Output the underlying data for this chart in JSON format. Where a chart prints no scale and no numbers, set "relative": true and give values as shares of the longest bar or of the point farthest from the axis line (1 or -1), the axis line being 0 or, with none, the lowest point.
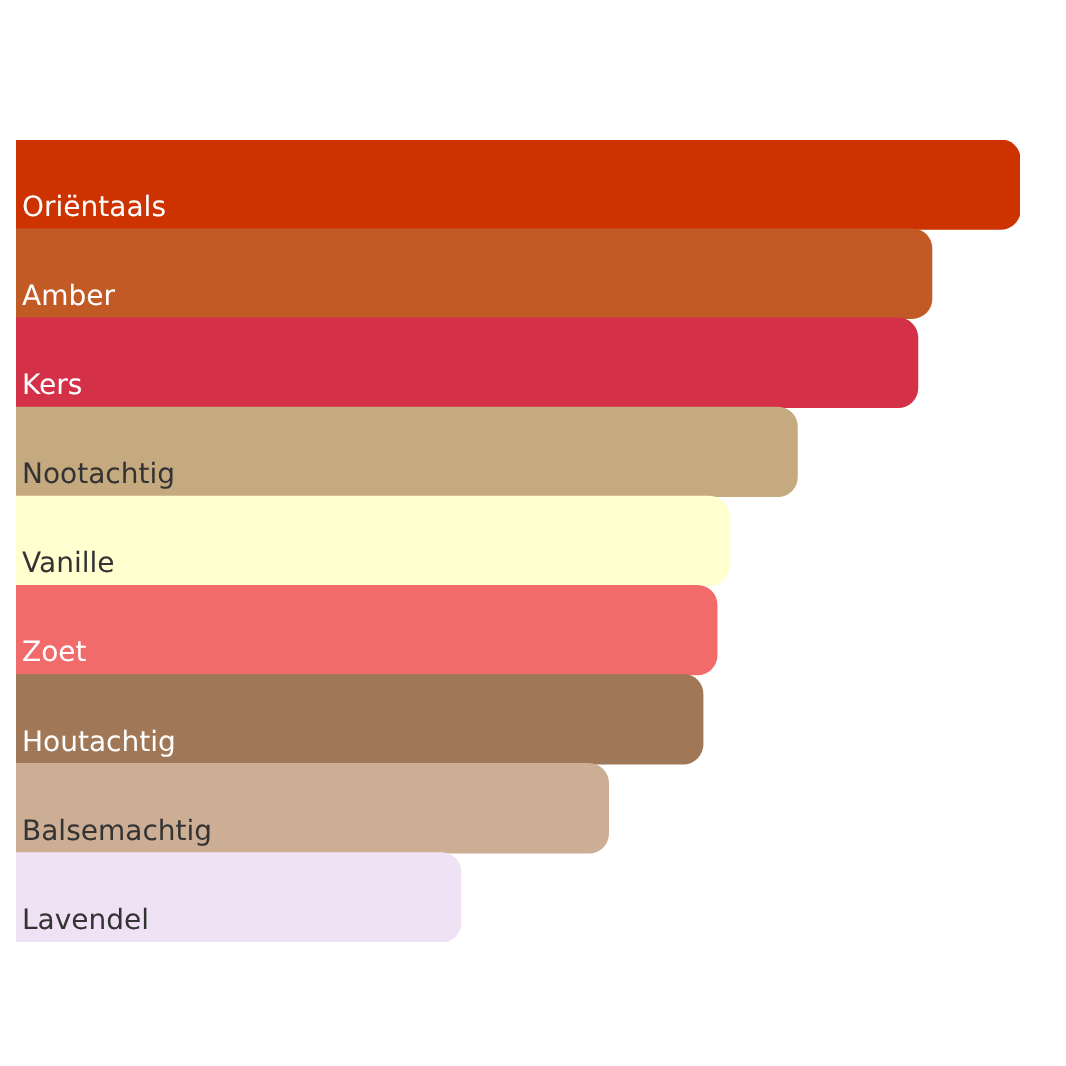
{
  "chart_data": {
    "type": "bar",
    "orientation": "horizontal",
    "relative": true,
    "legend": false,
    "categories": [
      "Oriëntaals",
      "Amber",
      "Kers",
      "Nootachtig",
      "Vanille",
      "Zoet",
      "Houtachtig",
      "Balsemachtig",
      "Lavendel"
    ],
    "values": [
      1,
      0.912,
      0.898,
      0.778,
      0.71,
      0.698,
      0.684,
      0.59,
      0.443
    ],
    "colors": [
      "#cc3300",
      "#c25a26",
      "#d43148",
      "#c4aa7e",
      "#ffffd0",
      "#f26b6b",
      "#a07858",
      "#cbae94",
      "#f0e2f5"
    ]
  }
}
